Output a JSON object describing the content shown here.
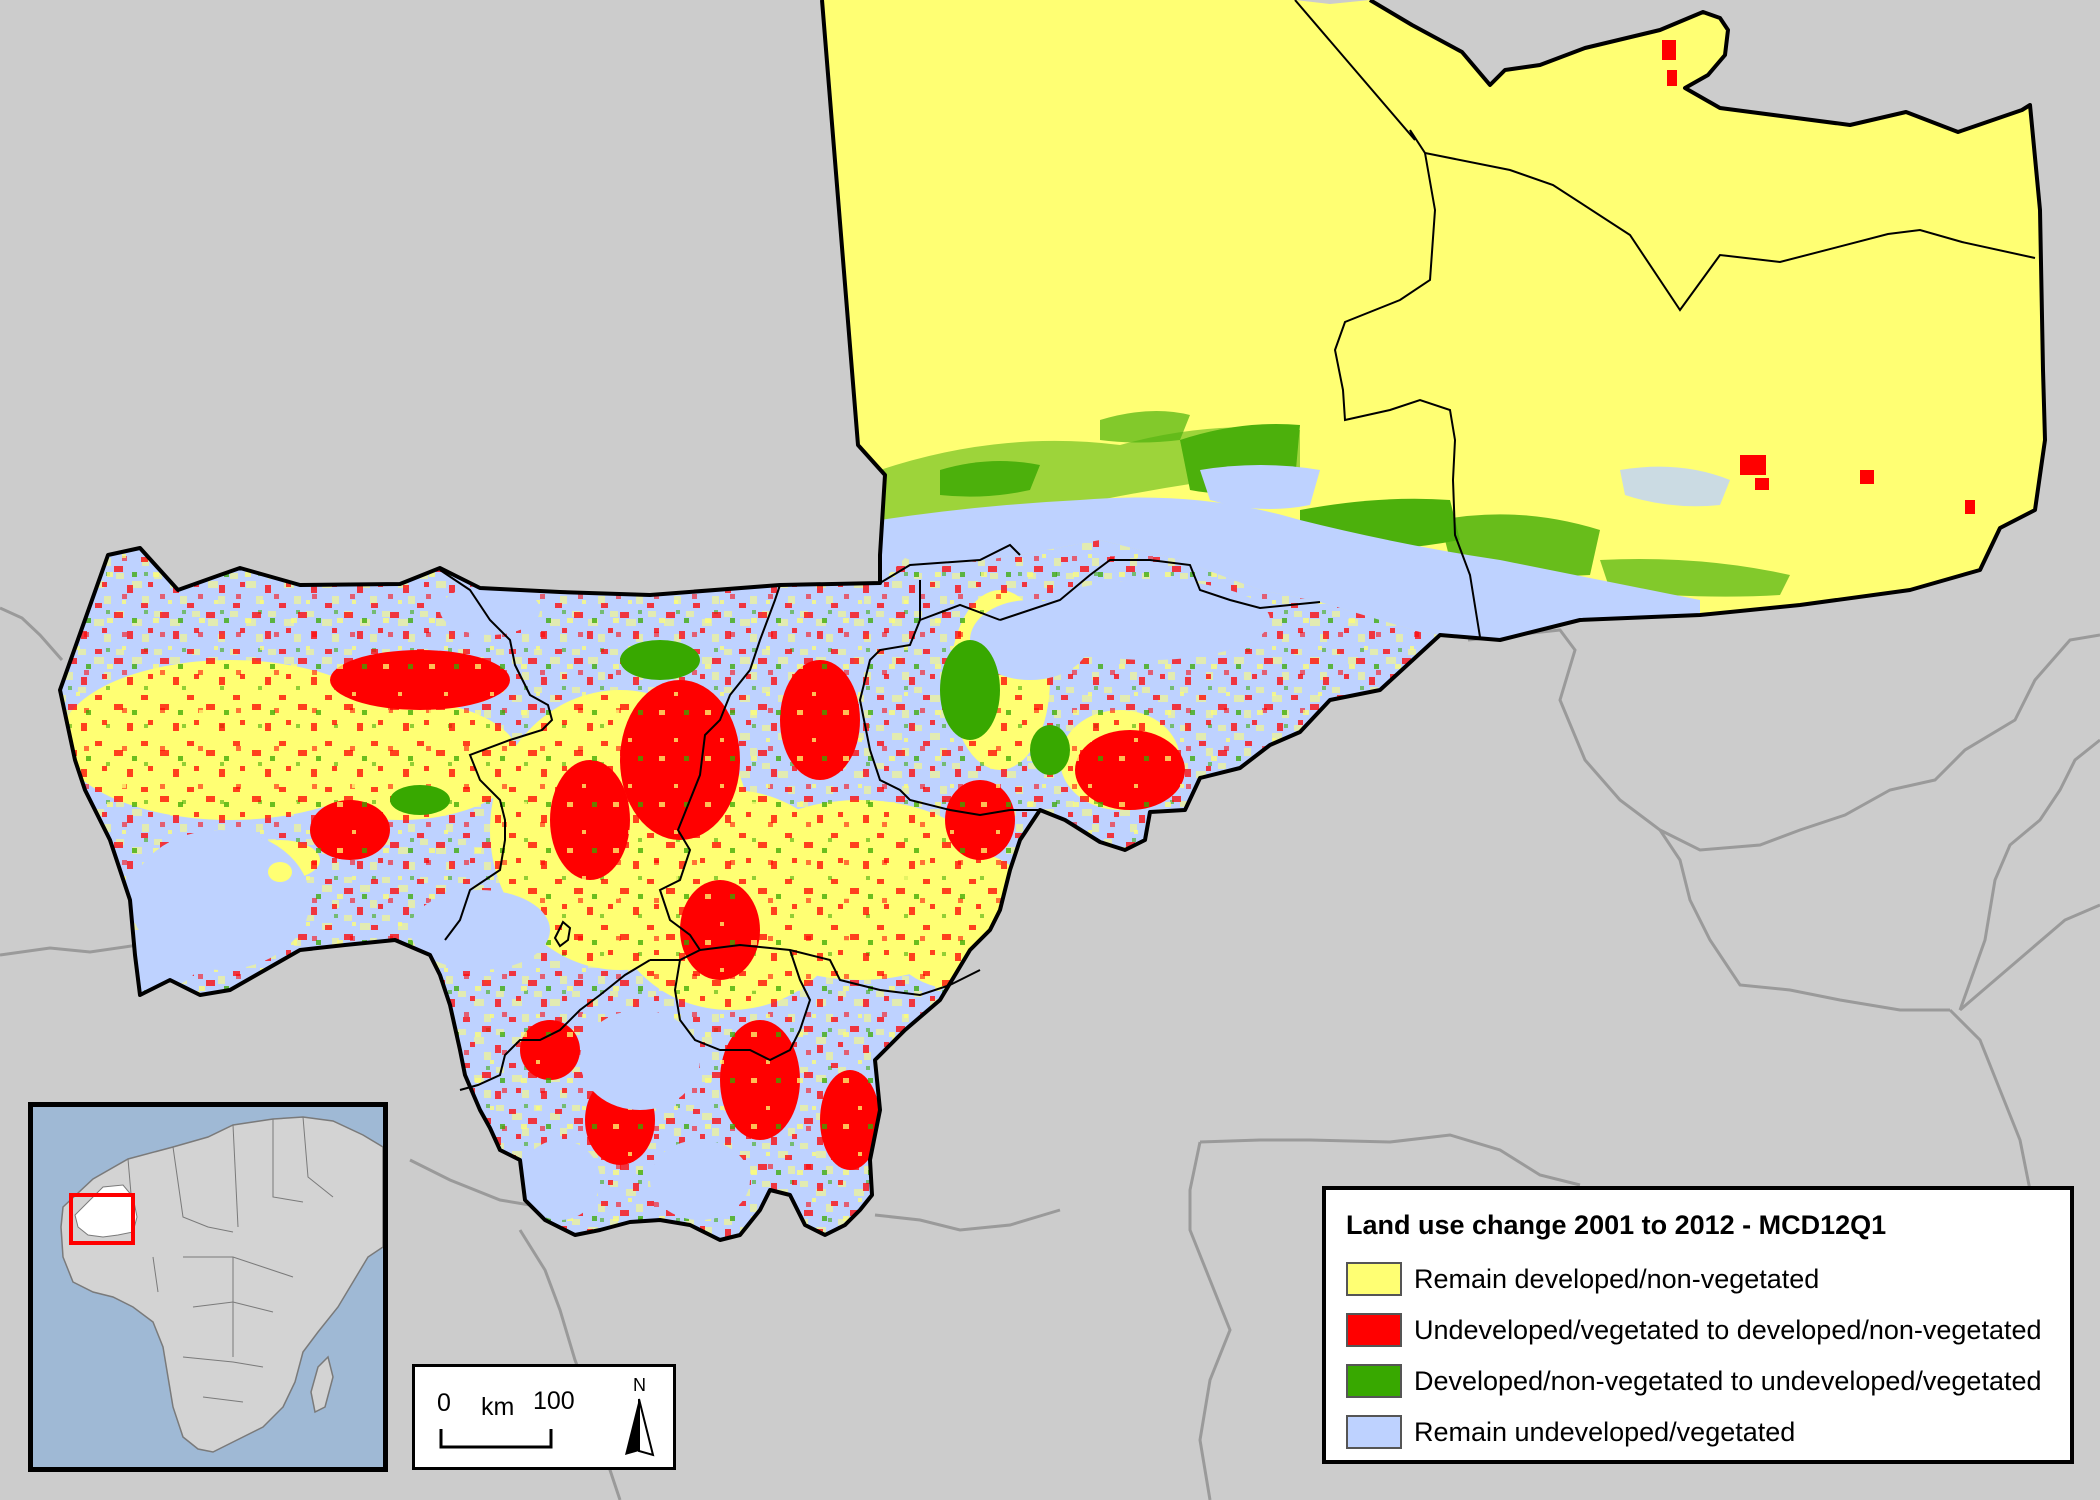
{
  "legend": {
    "title": "Land use change 2001 to 2012 - MCD12Q1",
    "items": [
      {
        "label": "Remain developed/non-vegetated",
        "color": "#ffff73"
      },
      {
        "label": "Undeveloped/vegetated to developed/non-vegetated",
        "color": "#ff0000"
      },
      {
        "label": "Developed/non-vegetated to undeveloped/vegetated",
        "color": "#38a800"
      },
      {
        "label": "Remain undeveloped/vegetated",
        "color": "#bed2ff"
      }
    ]
  },
  "scalebar": {
    "start_label": "0",
    "unit_label": "km",
    "end_label": "100",
    "north_label": "N"
  },
  "colors": {
    "background": "#cccccc",
    "inset_ocean": "#9fb9d5",
    "inset_land": "#d3d3d3",
    "highlight_country": "#ffffff",
    "inset_frame": "#ff0000"
  },
  "icons": [
    "north-arrow-icon"
  ]
}
